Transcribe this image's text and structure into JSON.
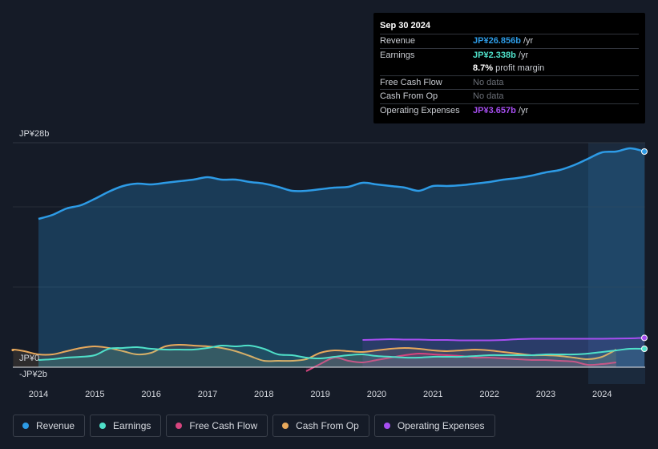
{
  "tooltip": {
    "date": "Sep 30 2024",
    "rows": [
      {
        "label": "Revenue",
        "value": "JP¥26.856b",
        "suffix": " /yr",
        "color": "#2d9be6"
      },
      {
        "label": "Earnings",
        "value": "JP¥2.338b",
        "suffix": " /yr",
        "color": "#4fe0c9"
      },
      {
        "label": "",
        "value": "8.7%",
        "suffix": " profit margin",
        "color": "#ffffff"
      },
      {
        "label": "Free Cash Flow",
        "value": "No data",
        "suffix": "",
        "color": "muted"
      },
      {
        "label": "Cash From Op",
        "value": "No data",
        "suffix": "",
        "color": "muted"
      },
      {
        "label": "Operating Expenses",
        "value": "JP¥3.657b",
        "suffix": " /yr",
        "color": "#a64ef0"
      }
    ]
  },
  "legend": [
    {
      "label": "Revenue",
      "color": "#2d9be6"
    },
    {
      "label": "Earnings",
      "color": "#4fe0c9"
    },
    {
      "label": "Free Cash Flow",
      "color": "#d6457f"
    },
    {
      "label": "Cash From Op",
      "color": "#e8a95c"
    },
    {
      "label": "Operating Expenses",
      "color": "#a64ef0"
    }
  ],
  "chart_data": {
    "type": "area",
    "title": "",
    "ylim": [
      -2,
      28
    ],
    "y_tick_labels": [
      "JP¥28b",
      "JP¥0",
      "-JP¥2b"
    ],
    "x_ticks": [
      "2014",
      "2015",
      "2016",
      "2017",
      "2018",
      "2019",
      "2020",
      "2021",
      "2022",
      "2023",
      "2024"
    ],
    "series": [
      {
        "name": "Revenue",
        "color": "#2d9be6",
        "x": [
          2014.0,
          2014.25,
          2014.5,
          2014.75,
          2015.0,
          2015.25,
          2015.5,
          2015.75,
          2016.0,
          2016.25,
          2016.5,
          2016.75,
          2017.0,
          2017.25,
          2017.5,
          2017.75,
          2018.0,
          2018.25,
          2018.5,
          2018.75,
          2019.0,
          2019.25,
          2019.5,
          2019.75,
          2020.0,
          2020.25,
          2020.5,
          2020.75,
          2021.0,
          2021.25,
          2021.5,
          2021.75,
          2022.0,
          2022.25,
          2022.5,
          2022.75,
          2023.0,
          2023.25,
          2023.5,
          2023.75,
          2024.0,
          2024.25,
          2024.5,
          2024.75
        ],
        "values": [
          18.5,
          19.0,
          19.8,
          20.2,
          21.0,
          21.9,
          22.6,
          22.9,
          22.8,
          23.0,
          23.2,
          23.4,
          23.7,
          23.4,
          23.4,
          23.1,
          22.9,
          22.5,
          22.0,
          22.0,
          22.2,
          22.4,
          22.5,
          23.0,
          22.8,
          22.6,
          22.4,
          22.0,
          22.6,
          22.6,
          22.7,
          22.9,
          23.1,
          23.4,
          23.6,
          23.9,
          24.3,
          24.6,
          25.2,
          26.0,
          26.8,
          26.9,
          27.3,
          26.9
        ]
      },
      {
        "name": "Earnings",
        "color": "#4fe0c9",
        "x": [
          2014.0,
          2014.25,
          2014.5,
          2014.75,
          2015.0,
          2015.25,
          2015.5,
          2015.75,
          2016.0,
          2016.25,
          2016.5,
          2016.75,
          2017.0,
          2017.25,
          2017.5,
          2017.75,
          2018.0,
          2018.25,
          2018.5,
          2018.75,
          2019.0,
          2019.25,
          2019.5,
          2019.75,
          2020.0,
          2020.25,
          2020.5,
          2020.75,
          2021.0,
          2021.25,
          2021.5,
          2021.75,
          2022.0,
          2022.25,
          2022.5,
          2022.75,
          2023.0,
          2023.25,
          2023.5,
          2023.75,
          2024.0,
          2024.25,
          2024.5,
          2024.75
        ],
        "values": [
          0.9,
          1.0,
          1.2,
          1.3,
          1.5,
          2.3,
          2.4,
          2.5,
          2.3,
          2.2,
          2.2,
          2.2,
          2.4,
          2.7,
          2.6,
          2.7,
          2.3,
          1.6,
          1.5,
          1.2,
          1.1,
          1.3,
          1.5,
          1.6,
          1.4,
          1.3,
          1.2,
          1.2,
          1.3,
          1.3,
          1.3,
          1.4,
          1.5,
          1.5,
          1.5,
          1.5,
          1.6,
          1.6,
          1.6,
          1.7,
          1.9,
          2.1,
          2.3,
          2.3
        ]
      },
      {
        "name": "Free Cash Flow",
        "color": "#d6457f",
        "x": [
          2018.75,
          2019.0,
          2019.25,
          2019.5,
          2019.75,
          2020.0,
          2020.25,
          2020.5,
          2020.75,
          2021.0,
          2021.25,
          2021.5,
          2021.75,
          2022.0,
          2022.25,
          2022.5,
          2022.75,
          2023.0,
          2023.25,
          2023.5,
          2023.75,
          2024.0,
          2024.25
        ],
        "values": [
          -0.5,
          0.4,
          1.2,
          0.8,
          0.6,
          0.9,
          1.2,
          1.5,
          1.7,
          1.6,
          1.5,
          1.4,
          1.2,
          1.2,
          1.1,
          1.0,
          0.9,
          0.9,
          0.8,
          0.7,
          0.3,
          0.4,
          0.6
        ]
      },
      {
        "name": "Cash From Op",
        "color": "#e8a95c",
        "x": [
          2013.25,
          2013.5,
          2013.75,
          2014.0,
          2014.25,
          2014.5,
          2014.75,
          2015.0,
          2015.25,
          2015.5,
          2015.75,
          2016.0,
          2016.25,
          2016.5,
          2016.75,
          2017.0,
          2017.25,
          2017.5,
          2017.75,
          2018.0,
          2018.25,
          2018.5,
          2018.75,
          2019.0,
          2019.25,
          2019.5,
          2019.75,
          2020.0,
          2020.25,
          2020.5,
          2020.75,
          2021.0,
          2021.25,
          2021.5,
          2021.75,
          2022.0,
          2022.25,
          2022.5,
          2022.75,
          2023.0,
          2023.25,
          2023.5,
          2023.75,
          2024.0,
          2024.25
        ],
        "values": [
          2.0,
          2.2,
          2.0,
          1.6,
          1.6,
          2.0,
          2.4,
          2.6,
          2.4,
          2.0,
          1.6,
          1.8,
          2.6,
          2.8,
          2.7,
          2.6,
          2.4,
          2.0,
          1.4,
          0.8,
          0.8,
          0.8,
          1.0,
          1.8,
          2.1,
          2.0,
          1.9,
          2.1,
          2.3,
          2.4,
          2.3,
          2.1,
          2.0,
          2.1,
          2.2,
          2.1,
          1.9,
          1.7,
          1.5,
          1.5,
          1.4,
          1.2,
          1.0,
          1.3,
          2.2
        ]
      },
      {
        "name": "Operating Expenses",
        "color": "#a64ef0",
        "x": [
          2019.75,
          2020.0,
          2020.25,
          2020.5,
          2020.75,
          2021.0,
          2021.25,
          2021.5,
          2021.75,
          2022.0,
          2022.25,
          2022.5,
          2022.75,
          2023.0,
          2023.25,
          2023.5,
          2023.75,
          2024.0,
          2024.25,
          2024.5,
          2024.75
        ],
        "values": [
          3.4,
          3.45,
          3.5,
          3.45,
          3.45,
          3.4,
          3.4,
          3.35,
          3.35,
          3.35,
          3.4,
          3.5,
          3.55,
          3.55,
          3.55,
          3.55,
          3.55,
          3.55,
          3.58,
          3.6,
          3.657
        ]
      }
    ]
  }
}
